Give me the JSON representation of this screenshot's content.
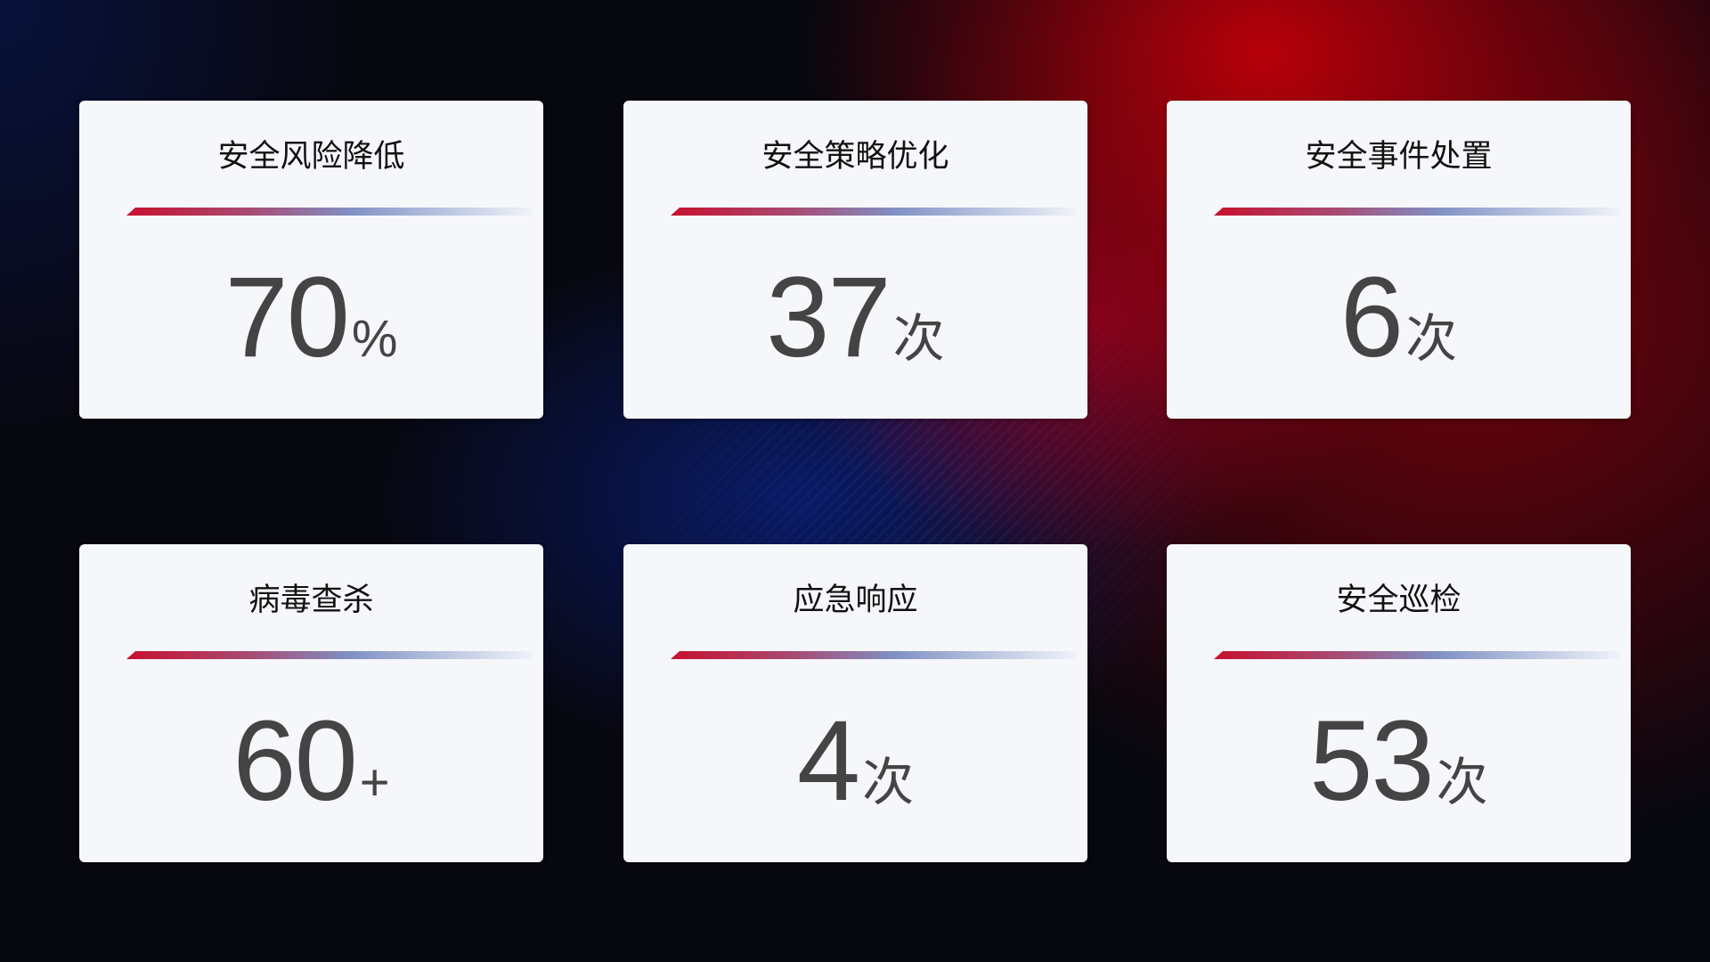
{
  "cards": [
    {
      "title": "安全风险降低",
      "value": "70",
      "unit": "%"
    },
    {
      "title": "安全策略优化",
      "value": "37",
      "unit": "次"
    },
    {
      "title": "安全事件处置",
      "value": "6",
      "unit": "次"
    },
    {
      "title": "病毒查杀",
      "value": "60",
      "unit": "+"
    },
    {
      "title": "应急响应",
      "value": "4",
      "unit": "次"
    },
    {
      "title": "安全巡检",
      "value": "53",
      "unit": "次"
    }
  ],
  "colors": {
    "accent_red": "#c8102e",
    "accent_blue": "#8090c4",
    "card_bg": "#f6f7fb",
    "value_text": "#444444"
  }
}
